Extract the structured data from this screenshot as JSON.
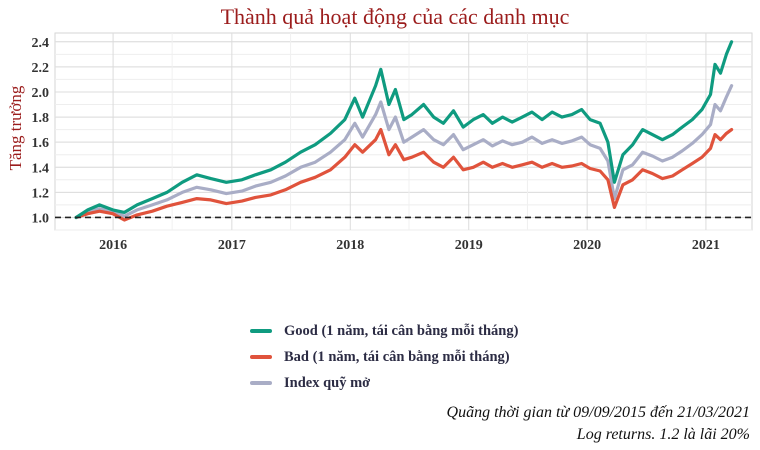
{
  "chart_data": {
    "type": "line",
    "title": "Thành quả hoạt động của các danh mục",
    "xlabel": "",
    "ylabel": "Tăng trưởng",
    "ylim": [
      0.9,
      2.47
    ],
    "xlim": [
      "2015-07-06",
      "2021-05-23"
    ],
    "x_ticks": [
      "2016",
      "2017",
      "2018",
      "2019",
      "2020",
      "2021"
    ],
    "y_ticks": [
      "1.0",
      "1.2",
      "1.4",
      "1.6",
      "1.8",
      "2.0",
      "2.2",
      "2.4"
    ],
    "x": [
      "2015-09-09",
      "2015-10-15",
      "2015-11-20",
      "2015-12-31",
      "2016-02-05",
      "2016-03-15",
      "2016-05-01",
      "2016-06-15",
      "2016-08-01",
      "2016-09-15",
      "2016-10-28",
      "2016-12-15",
      "2017-02-01",
      "2017-03-15",
      "2017-05-01",
      "2017-06-15",
      "2017-08-01",
      "2017-09-15",
      "2017-11-01",
      "2017-12-15",
      "2018-01-15",
      "2018-02-08",
      "2018-03-20",
      "2018-04-05",
      "2018-04-30",
      "2018-05-20",
      "2018-06-15",
      "2018-07-10",
      "2018-08-15",
      "2018-09-15",
      "2018-10-15",
      "2018-11-15",
      "2018-12-15",
      "2019-01-15",
      "2019-02-15",
      "2019-03-15",
      "2019-04-15",
      "2019-05-15",
      "2019-06-15",
      "2019-07-15",
      "2019-08-15",
      "2019-09-15",
      "2019-10-15",
      "2019-11-15",
      "2019-12-15",
      "2020-01-10",
      "2020-02-10",
      "2020-03-05",
      "2020-03-25",
      "2020-04-20",
      "2020-05-20",
      "2020-06-20",
      "2020-07-20",
      "2020-08-20",
      "2020-09-20",
      "2020-10-20",
      "2020-11-20",
      "2020-12-20",
      "2021-01-15",
      "2021-01-29",
      "2021-02-15",
      "2021-03-05",
      "2021-03-21"
    ],
    "series": [
      {
        "name": "Good (1 năm, tái cân bằng mỗi tháng)",
        "color": "#0f9b80",
        "values": [
          1.0,
          1.06,
          1.1,
          1.06,
          1.04,
          1.1,
          1.15,
          1.2,
          1.28,
          1.34,
          1.31,
          1.28,
          1.3,
          1.34,
          1.38,
          1.44,
          1.52,
          1.58,
          1.67,
          1.78,
          1.95,
          1.8,
          2.05,
          2.18,
          1.9,
          2.02,
          1.78,
          1.82,
          1.9,
          1.8,
          1.75,
          1.85,
          1.72,
          1.78,
          1.82,
          1.75,
          1.8,
          1.76,
          1.8,
          1.84,
          1.78,
          1.84,
          1.8,
          1.82,
          1.86,
          1.78,
          1.75,
          1.6,
          1.28,
          1.5,
          1.58,
          1.7,
          1.66,
          1.62,
          1.66,
          1.72,
          1.78,
          1.86,
          1.98,
          2.22,
          2.15,
          2.3,
          2.4
        ]
      },
      {
        "name": "Bad (1 năm, tái cân bằng mỗi tháng)",
        "color": "#e0533c",
        "values": [
          1.0,
          1.03,
          1.05,
          1.03,
          0.98,
          1.02,
          1.05,
          1.09,
          1.12,
          1.15,
          1.14,
          1.11,
          1.13,
          1.16,
          1.18,
          1.22,
          1.28,
          1.32,
          1.38,
          1.48,
          1.58,
          1.52,
          1.62,
          1.7,
          1.5,
          1.58,
          1.46,
          1.48,
          1.52,
          1.44,
          1.4,
          1.48,
          1.38,
          1.4,
          1.44,
          1.4,
          1.43,
          1.4,
          1.42,
          1.44,
          1.4,
          1.43,
          1.4,
          1.41,
          1.43,
          1.39,
          1.37,
          1.3,
          1.08,
          1.26,
          1.3,
          1.38,
          1.35,
          1.31,
          1.33,
          1.38,
          1.43,
          1.48,
          1.55,
          1.66,
          1.62,
          1.67,
          1.7
        ]
      },
      {
        "name": "Index quỹ mở",
        "color": "#a9adc6",
        "values": [
          1.0,
          1.04,
          1.07,
          1.05,
          1.01,
          1.06,
          1.1,
          1.14,
          1.2,
          1.24,
          1.22,
          1.19,
          1.21,
          1.25,
          1.28,
          1.33,
          1.4,
          1.44,
          1.52,
          1.62,
          1.75,
          1.64,
          1.82,
          1.92,
          1.7,
          1.8,
          1.6,
          1.64,
          1.7,
          1.62,
          1.58,
          1.66,
          1.54,
          1.58,
          1.62,
          1.57,
          1.61,
          1.58,
          1.6,
          1.64,
          1.59,
          1.62,
          1.59,
          1.61,
          1.64,
          1.58,
          1.55,
          1.45,
          1.15,
          1.38,
          1.42,
          1.52,
          1.49,
          1.45,
          1.48,
          1.53,
          1.59,
          1.66,
          1.74,
          1.9,
          1.85,
          1.96,
          2.05
        ]
      }
    ],
    "reference_line": 1.0,
    "grid": true,
    "legend_placement": "bottom-center"
  },
  "caption": {
    "line1": "Quãng thời gian từ 09/09/2015 đến 21/03/2021",
    "line2": "Log returns. 1.2 là lãi 20%"
  }
}
